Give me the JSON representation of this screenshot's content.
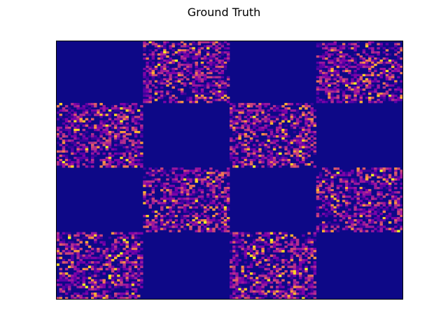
{
  "chart_data": {
    "type": "heatmap",
    "title": "Ground Truth",
    "xlabel": "",
    "ylabel": "",
    "axes_ticks": false,
    "grid": false,
    "colormap": "plasma",
    "background_color": "#0d0887",
    "block_grid": {
      "rows": 4,
      "cols": 4,
      "active_pattern": [
        [
          0,
          1,
          0,
          1
        ],
        [
          1,
          0,
          1,
          0
        ],
        [
          0,
          1,
          0,
          1
        ],
        [
          1,
          0,
          1,
          0
        ]
      ]
    },
    "row_fractions": [
      0.24,
      0.25,
      0.25,
      0.26
    ],
    "col_fractions": [
      0.25,
      0.25,
      0.25,
      0.25
    ],
    "cells_per_block": [
      30,
      30
    ],
    "active_fill_density": 0.55,
    "palette": [
      "#3b049a",
      "#5c01a6",
      "#7e03a8",
      "#9c179e",
      "#b52f8c",
      "#cc4778",
      "#de5f65",
      "#ed7953",
      "#f89540",
      "#fdb42f",
      "#fbd524",
      "#f0f921"
    ],
    "palette_weights": [
      14,
      16,
      18,
      16,
      12,
      8,
      5,
      4,
      3,
      2,
      1.5,
      0.8
    ]
  }
}
